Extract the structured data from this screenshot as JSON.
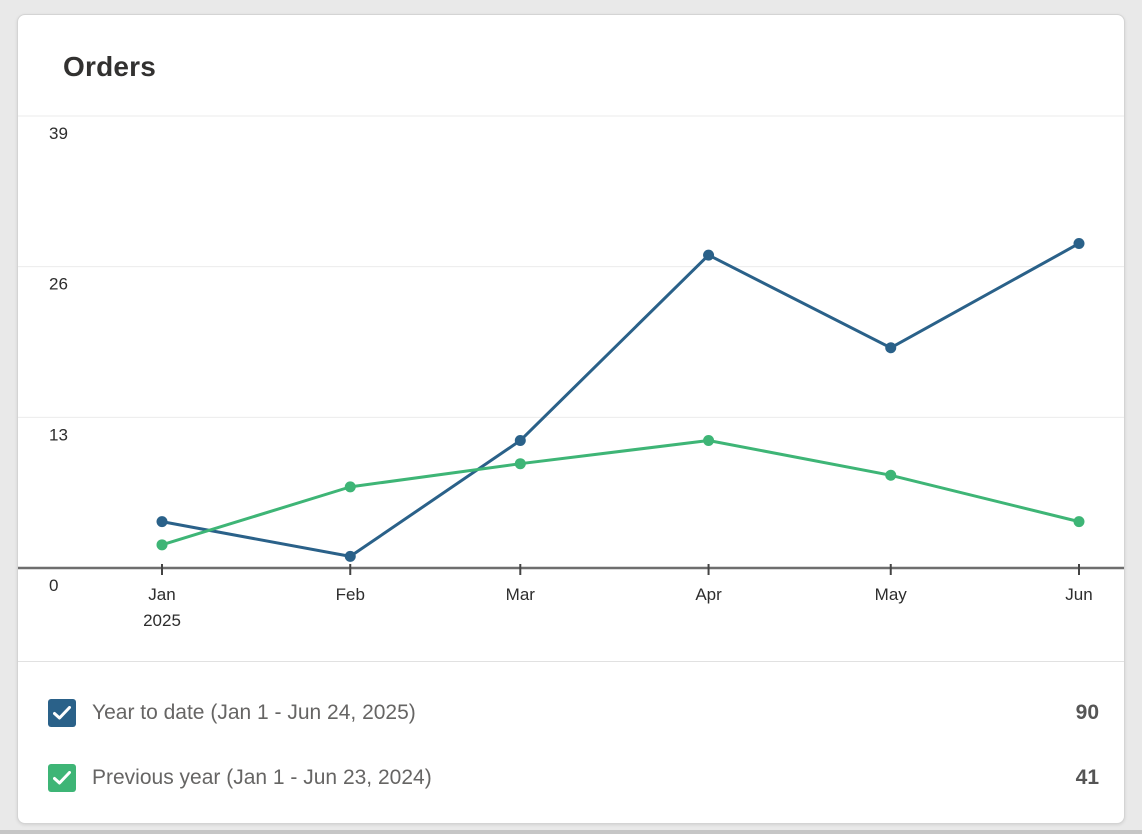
{
  "card": {
    "title": "Orders"
  },
  "chart_data": {
    "type": "line",
    "title": "Orders",
    "categories": [
      "Jan",
      "Feb",
      "Mar",
      "Apr",
      "May",
      "Jun"
    ],
    "x_sublabels": [
      "2025",
      "",
      "",
      "",
      "",
      ""
    ],
    "day_offsets": [
      0,
      31,
      59,
      90,
      120,
      151
    ],
    "yticks": [
      39,
      26,
      13,
      0
    ],
    "ylim": [
      0,
      39
    ],
    "grid": "horizontal-light",
    "legend_position": "bottom",
    "series": [
      {
        "name": "Year to date (Jan 1 - Jun 24, 2025)",
        "color": "#2a6189",
        "values": [
          4,
          1,
          11,
          27,
          19,
          28
        ],
        "total": 90
      },
      {
        "name": "Previous year (Jan 1 - Jun 23, 2024)",
        "color": "#3eb576",
        "values": [
          2,
          7,
          9,
          11,
          8,
          4
        ],
        "total": 41
      }
    ]
  },
  "legend": {
    "items": [
      {
        "label": "Year to date (Jan 1 - Jun 24, 2025)",
        "value": "90",
        "checked": true
      },
      {
        "label": "Previous year (Jan 1 - Jun 23, 2024)",
        "value": "41",
        "checked": true
      }
    ]
  },
  "colors": {
    "axis": "#6e6e6e",
    "gridline": "#ebebeb",
    "tick_text": "#2d2d2d",
    "legend_text": "#666564",
    "legend_value": "#555555",
    "title_text": "#323130",
    "card_background": "#ffffff",
    "page_background": "#e9e9e9"
  }
}
